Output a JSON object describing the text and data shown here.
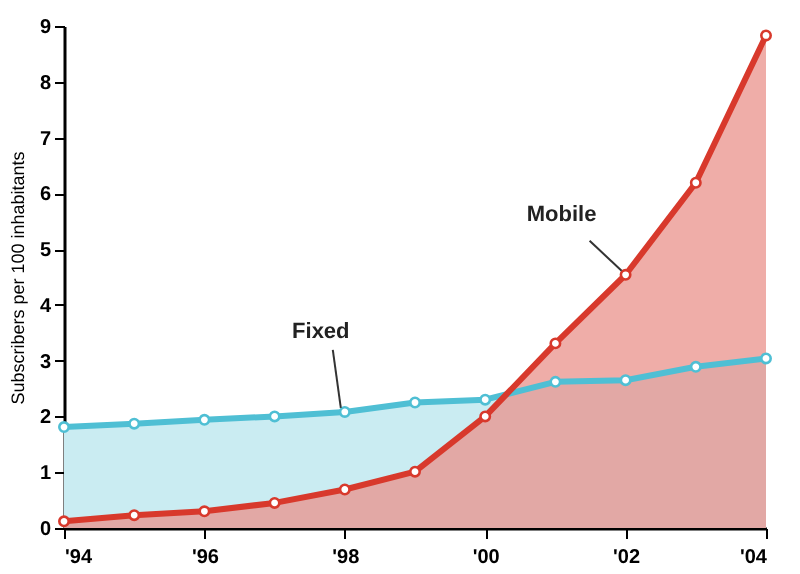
{
  "chart_data": {
    "type": "area",
    "ylabel": "Subscribers per 100 inhabitants",
    "x": [
      1994,
      1995,
      1996,
      1997,
      1998,
      1999,
      2000,
      2001,
      2002,
      2003,
      2004
    ],
    "series": [
      {
        "name": "Fixed",
        "color": "#4fbfd4",
        "values": [
          1.81,
          1.87,
          1.94,
          2.0,
          2.08,
          2.25,
          2.3,
          2.62,
          2.65,
          2.89,
          3.04
        ]
      },
      {
        "name": "Mobile",
        "color": "#d8392c",
        "values": [
          0.12,
          0.23,
          0.3,
          0.45,
          0.69,
          1.01,
          2.0,
          3.31,
          4.54,
          6.19,
          8.83
        ]
      }
    ],
    "xlim": [
      1994,
      2004
    ],
    "xticks": [
      {
        "value": 1994,
        "label": "'94"
      },
      {
        "value": 1996,
        "label": "'96"
      },
      {
        "value": 1998,
        "label": "'98"
      },
      {
        "value": 2000,
        "label": "'00"
      },
      {
        "value": 2002,
        "label": "'02"
      },
      {
        "value": 2004,
        "label": "'04"
      }
    ],
    "ylim": [
      0,
      9
    ],
    "yticks": [
      0,
      1,
      2,
      3,
      4,
      5,
      6,
      7,
      8,
      9
    ],
    "grid": false,
    "legend": false,
    "marker": "circle",
    "line_style": "solid"
  }
}
